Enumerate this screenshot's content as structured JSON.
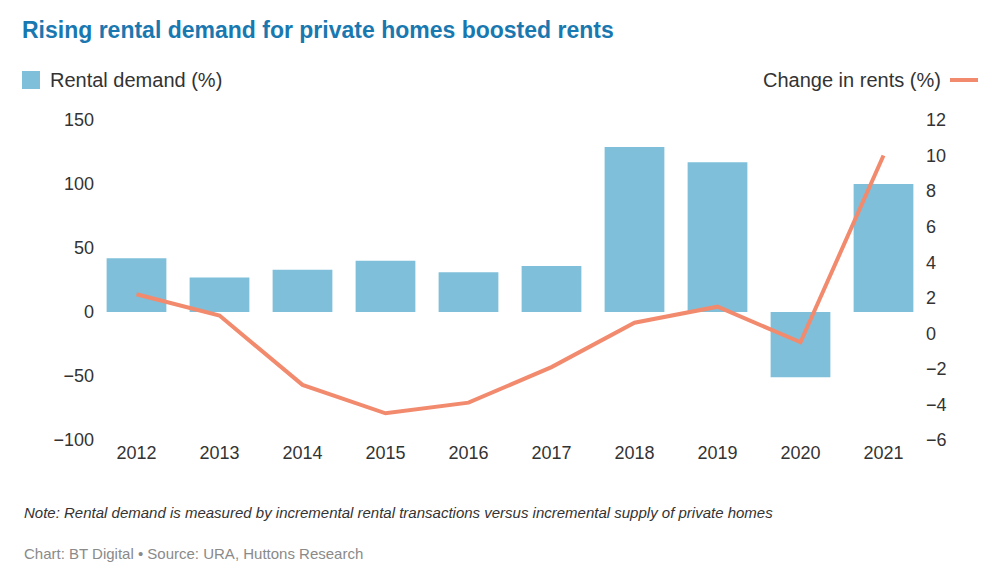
{
  "chart_data": {
    "type": "bar",
    "title": "Rising rental demand for private homes boosted rents",
    "note": "Note: Rental demand is measured by incremental rental transactions versus incremental supply of private homes",
    "source": "Chart: BT Digital • Source: URA, Huttons Research",
    "categories": [
      "2012",
      "2013",
      "2014",
      "2015",
      "2016",
      "2017",
      "2018",
      "2019",
      "2020",
      "2021"
    ],
    "series": [
      {
        "name": "Rental demand (%)",
        "type": "bar",
        "color": "#7fbfd9",
        "values": [
          42,
          27,
          33,
          40,
          31,
          36,
          129,
          117,
          -51,
          100
        ]
      },
      {
        "name": "Change in rents (%)",
        "type": "line",
        "axis": "y2",
        "color": "#f28a6e",
        "values": [
          2.2,
          1.0,
          -2.9,
          -4.5,
          -3.9,
          -1.9,
          0.6,
          1.5,
          -0.5,
          10.0
        ]
      }
    ],
    "ylim": [
      -100,
      150
    ],
    "yticks": [
      {
        "value": -100,
        "label": "−100"
      },
      {
        "value": -50,
        "label": "−50"
      },
      0,
      50,
      100,
      150
    ],
    "y2lim": [
      -6,
      12
    ],
    "y2ticks": [
      {
        "value": -6,
        "label": "−6"
      },
      {
        "value": -4,
        "label": "−4"
      },
      {
        "value": -2,
        "label": "−2"
      },
      0,
      2,
      4,
      6,
      8,
      10,
      12
    ],
    "grid": false
  }
}
